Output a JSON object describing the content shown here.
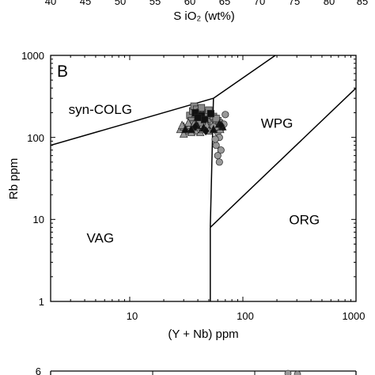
{
  "top_strip": {
    "tick_labels": [
      "40",
      "45",
      "50",
      "55",
      "60",
      "65",
      "70",
      "75",
      "80",
      "85"
    ],
    "xlabel": "S iO₂ (wt%)"
  },
  "bottom_strip": {
    "tick_label": "6"
  },
  "chart_data": {
    "type": "scatter",
    "panel_label": "B",
    "title": "",
    "xlabel": "(Y + Nb) ppm",
    "ylabel": "Rb ppm",
    "x_scale": "log",
    "y_scale": "log",
    "xlim": [
      2,
      1000
    ],
    "ylim": [
      1,
      1000
    ],
    "x_ticks": [
      10,
      100,
      1000
    ],
    "x_tick_labels": [
      "10",
      "100",
      "1000"
    ],
    "y_ticks": [
      1,
      10,
      100,
      1000
    ],
    "y_tick_labels": [
      "1",
      "10",
      "100",
      "1000"
    ],
    "grid": false,
    "fields": [
      {
        "name": "syn-COLG",
        "x": 5.5,
        "y": 220
      },
      {
        "name": "WPG",
        "x": 200,
        "y": 150
      },
      {
        "name": "VAG",
        "x": 5.5,
        "y": 6
      },
      {
        "name": "ORG",
        "x": 350,
        "y": 10
      }
    ],
    "boundaries": [
      {
        "points": [
          [
            2,
            80
          ],
          [
            55,
            300
          ]
        ]
      },
      {
        "points": [
          [
            55,
            300
          ],
          [
            400,
            2000
          ]
        ]
      },
      {
        "points": [
          [
            55,
            300
          ],
          [
            51.5,
            8
          ]
        ]
      },
      {
        "points": [
          [
            51.5,
            8
          ],
          [
            51.5,
            1
          ]
        ]
      },
      {
        "points": [
          [
            51.5,
            8
          ],
          [
            1000,
            400
          ]
        ]
      }
    ],
    "series": [
      {
        "marker": "square",
        "color": "#888888",
        "points": [
          [
            34,
            185
          ],
          [
            36,
            210
          ],
          [
            37,
            240
          ],
          [
            39,
            220
          ],
          [
            40,
            195
          ],
          [
            42,
            205
          ],
          [
            41,
            175
          ],
          [
            38,
            165
          ],
          [
            45,
            200
          ],
          [
            46,
            185
          ],
          [
            43,
            230
          ],
          [
            48,
            190
          ],
          [
            44,
            165
          ],
          [
            35,
            160
          ],
          [
            50,
            215
          ],
          [
            52,
            170
          ],
          [
            49,
            155
          ],
          [
            40,
            150
          ],
          [
            47,
            140
          ],
          [
            55,
            180
          ],
          [
            60,
            160
          ],
          [
            62,
            150
          ],
          [
            58,
            170
          ],
          [
            36,
            145
          ]
        ]
      },
      {
        "marker": "square",
        "color": "#111111",
        "points": [
          [
            38,
            200
          ],
          [
            43,
            185
          ],
          [
            46,
            165
          ],
          [
            52,
            195
          ],
          [
            40,
            175
          ]
        ]
      },
      {
        "marker": "circle",
        "color": "#999999",
        "points": [
          [
            60,
            115
          ],
          [
            62,
            100
          ],
          [
            58,
            80
          ],
          [
            64,
            70
          ],
          [
            60,
            60
          ],
          [
            62,
            50
          ],
          [
            70,
            190
          ],
          [
            65,
            130
          ],
          [
            68,
            145
          ],
          [
            55,
            135
          ],
          [
            57,
            95
          ]
        ]
      },
      {
        "marker": "triangle",
        "color": "#999999",
        "points": [
          [
            28,
            125
          ],
          [
            30,
            135
          ],
          [
            32,
            120
          ],
          [
            34,
            140
          ],
          [
            36,
            130
          ],
          [
            38,
            120
          ],
          [
            40,
            135
          ],
          [
            42,
            115
          ],
          [
            30,
            110
          ],
          [
            33,
            150
          ],
          [
            37,
            145
          ],
          [
            44,
            125
          ],
          [
            48,
            140
          ],
          [
            50,
            120
          ],
          [
            29,
            140
          ],
          [
            35,
            115
          ],
          [
            60,
            135
          ],
          [
            63,
            125
          ]
        ]
      },
      {
        "marker": "triangle",
        "color": "#111111",
        "points": [
          [
            31,
            125
          ],
          [
            39,
            140
          ],
          [
            45,
            130
          ],
          [
            55,
            125
          ],
          [
            66,
            135
          ],
          [
            62,
            145
          ],
          [
            35,
            125
          ]
        ]
      },
      {
        "marker": "diamond",
        "color": "#111111",
        "points": [
          [
            38,
            135
          ],
          [
            64,
            140
          ],
          [
            47,
            120
          ]
        ]
      }
    ]
  }
}
